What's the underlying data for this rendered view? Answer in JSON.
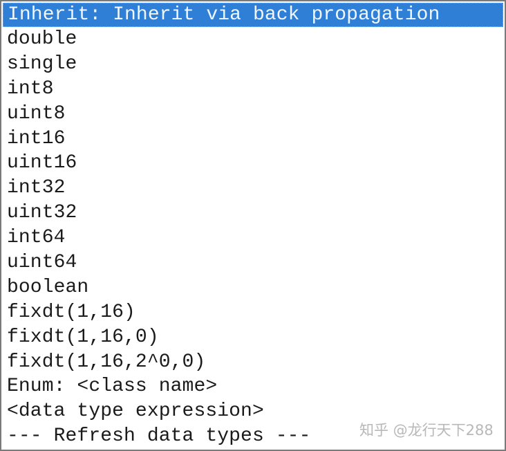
{
  "dropdown": {
    "selected_index": 0,
    "options": [
      "Inherit: Inherit via back propagation",
      "double",
      "single",
      "int8",
      "uint8",
      "int16",
      "uint16",
      "int32",
      "uint32",
      "int64",
      "uint64",
      "boolean",
      "fixdt(1,16)",
      "fixdt(1,16,0)",
      "fixdt(1,16,2^0,0)",
      "Enum: <class name>",
      "<data type expression>",
      "--- Refresh data types ---"
    ],
    "highlight_color": "#2f7fd6"
  },
  "watermark": "知乎 @龙行天下288"
}
